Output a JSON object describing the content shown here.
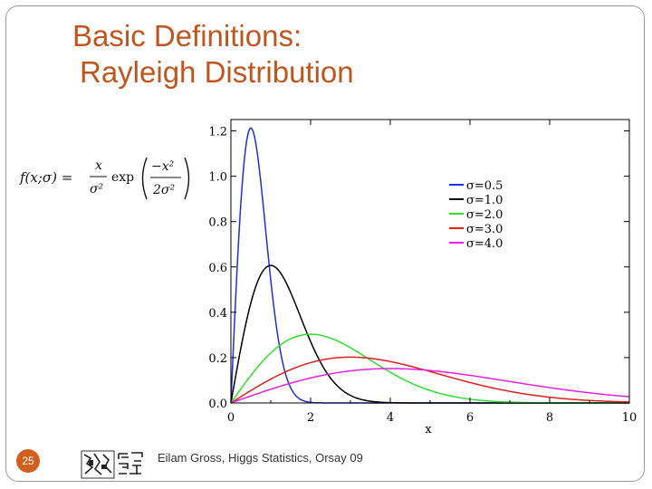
{
  "slide": {
    "title_line1": "Basic Definitions:",
    "title_line2": "Rayleigh Distribution",
    "page_number": "25",
    "footer": "Eilam Gross, Higgs Statistics, Orsay 09"
  },
  "formula": {
    "lhs": "f(x;σ) =",
    "frac_num": "x",
    "frac_den": "σ²",
    "func": "exp",
    "arg_num": "−x²",
    "arg_den": "2σ²"
  },
  "chart_data": {
    "type": "line",
    "title": "",
    "xlabel": "x",
    "ylabel": "",
    "xlim": [
      0,
      10
    ],
    "ylim": [
      0,
      1.25
    ],
    "xticks": [
      0,
      2,
      4,
      6,
      8,
      10
    ],
    "yticks": [
      0.0,
      0.2,
      0.4,
      0.6,
      0.8,
      1.0,
      1.2
    ],
    "ytick_labels": [
      "0.0",
      "0.2",
      "0.4",
      "0.6",
      "0.8",
      "1.0",
      "1.2"
    ],
    "legend_position": "top-right",
    "grid": false,
    "series": [
      {
        "name": "σ=0.5",
        "sigma": 0.5,
        "color": "#1f2fd8",
        "x": [
          0,
          0.1,
          0.2,
          0.3,
          0.4,
          0.5,
          0.6,
          0.8,
          1.0,
          1.2,
          1.5,
          2.0,
          2.5
        ],
        "y": [
          0,
          0.392,
          0.738,
          0.998,
          1.166,
          1.213,
          1.168,
          0.888,
          0.541,
          0.271,
          0.083,
          0.003,
          0.0
        ]
      },
      {
        "name": "σ=1.0",
        "sigma": 1.0,
        "color": "#000000",
        "x": [
          0,
          0.25,
          0.5,
          0.75,
          1.0,
          1.25,
          1.5,
          2.0,
          2.5,
          3.0,
          3.5,
          4.0,
          4.5,
          5.0
        ],
        "y": [
          0,
          0.242,
          0.441,
          0.566,
          0.607,
          0.573,
          0.487,
          0.271,
          0.11,
          0.033,
          0.008,
          0.001,
          0.0,
          0.0
        ]
      },
      {
        "name": "σ=2.0",
        "sigma": 2.0,
        "color": "#2fe02f",
        "x": [
          0,
          0.5,
          1.0,
          1.5,
          2.0,
          2.5,
          3.0,
          4.0,
          5.0,
          6.0,
          7.0,
          8.0,
          9.0,
          10.0
        ],
        "y": [
          0,
          0.121,
          0.221,
          0.283,
          0.303,
          0.286,
          0.244,
          0.135,
          0.055,
          0.017,
          0.004,
          0.001,
          0.0,
          0.0
        ]
      },
      {
        "name": "σ=3.0",
        "sigma": 3.0,
        "color": "#e01f1f",
        "x": [
          0,
          0.5,
          1.0,
          1.5,
          2.0,
          2.5,
          3.0,
          4.0,
          5.0,
          6.0,
          7.0,
          8.0,
          9.0,
          10.0
        ],
        "y": [
          0,
          0.055,
          0.105,
          0.147,
          0.178,
          0.197,
          0.202,
          0.183,
          0.139,
          0.09,
          0.051,
          0.025,
          0.011,
          0.004
        ]
      },
      {
        "name": "σ=4.0",
        "sigma": 4.0,
        "color": "#e81fe0",
        "x": [
          0,
          0.5,
          1.0,
          1.5,
          2.0,
          2.5,
          3.0,
          4.0,
          5.0,
          6.0,
          7.0,
          8.0,
          9.0,
          10.0
        ],
        "y": [
          0,
          0.031,
          0.061,
          0.087,
          0.11,
          0.128,
          0.141,
          0.152,
          0.143,
          0.122,
          0.095,
          0.068,
          0.045,
          0.027
        ]
      }
    ]
  }
}
